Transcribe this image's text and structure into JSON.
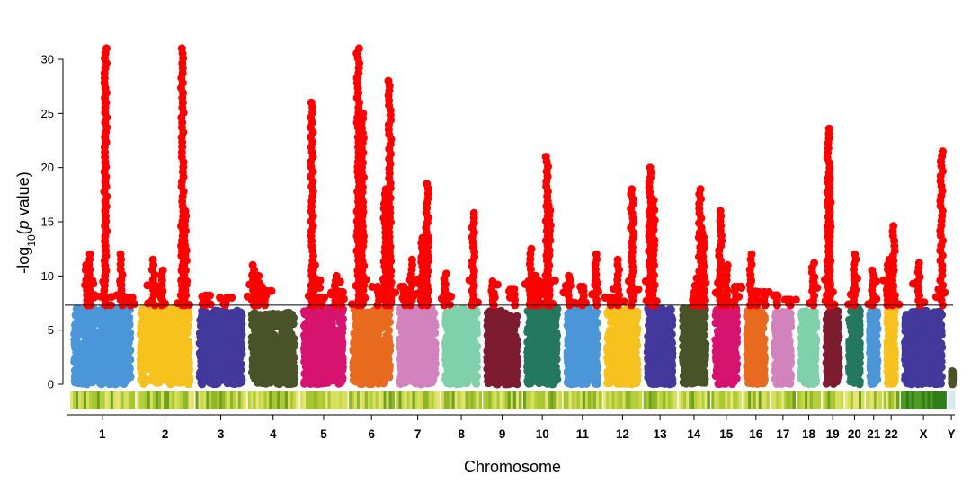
{
  "chart_data": {
    "type": "scatter",
    "subtype": "manhattan",
    "xlabel": "Chromosome",
    "ylabel": {
      "prefix": "-log",
      "sub": "10",
      "open": "(",
      "italic": "p",
      "rest": " value)"
    },
    "ylim": [
      0,
      31
    ],
    "yticks": [
      0,
      5,
      10,
      15,
      20,
      25,
      30
    ],
    "significance_line": 7.3,
    "significant_color": "#ff0000",
    "chromosomes": [
      {
        "label": "1",
        "color": "#4a96d8",
        "bg_max": 7.0,
        "peaks": [
          [
            0.25,
            11
          ],
          [
            0.3,
            12
          ],
          [
            0.55,
            31
          ],
          [
            0.8,
            12
          ],
          [
            0.95,
            8
          ]
        ]
      },
      {
        "label": "2",
        "color": "#f7c11e",
        "bg_max": 7.0,
        "peaks": [
          [
            0.3,
            11.5
          ],
          [
            0.45,
            10.5
          ],
          [
            0.8,
            31
          ],
          [
            0.85,
            16
          ]
        ]
      },
      {
        "label": "3",
        "color": "#43389c",
        "bg_max": 6.8,
        "peaks": [
          [
            0.2,
            8.2
          ],
          [
            0.6,
            8
          ]
        ]
      },
      {
        "label": "4",
        "color": "#4a5228",
        "bg_max": 6.6,
        "peaks": [
          [
            0.1,
            11
          ],
          [
            0.2,
            10
          ],
          [
            0.35,
            8.6
          ]
        ]
      },
      {
        "label": "5",
        "color": "#d6136e",
        "bg_max": 7.0,
        "peaks": [
          [
            0.25,
            26
          ],
          [
            0.3,
            11
          ],
          [
            0.45,
            8
          ],
          [
            0.75,
            10
          ],
          [
            0.85,
            8.5
          ]
        ]
      },
      {
        "label": "6",
        "color": "#e86a1e",
        "bg_max": 7.0,
        "peaks": [
          [
            0.2,
            31
          ],
          [
            0.3,
            25
          ],
          [
            0.65,
            9
          ],
          [
            0.8,
            18
          ],
          [
            0.9,
            28
          ]
        ]
      },
      {
        "label": "7",
        "color": "#d283be",
        "bg_max": 7.0,
        "peaks": [
          [
            0.2,
            9
          ],
          [
            0.35,
            11.5
          ],
          [
            0.6,
            13.5
          ],
          [
            0.72,
            18.5
          ]
        ]
      },
      {
        "label": "8",
        "color": "#7ed1aa",
        "bg_max": 7.0,
        "peaks": [
          [
            0.1,
            10.2
          ],
          [
            0.8,
            15.8
          ]
        ]
      },
      {
        "label": "9",
        "color": "#7d1c30",
        "bg_max": 6.8,
        "peaks": [
          [
            0.25,
            9.5
          ],
          [
            0.8,
            8.8
          ]
        ]
      },
      {
        "label": "10",
        "color": "#257860",
        "bg_max": 7.0,
        "peaks": [
          [
            0.2,
            12.5
          ],
          [
            0.3,
            10
          ],
          [
            0.4,
            9.5
          ],
          [
            0.62,
            21
          ],
          [
            0.68,
            16.5
          ]
        ]
      },
      {
        "label": "11",
        "color": "#4a96d8",
        "bg_max": 7.0,
        "peaks": [
          [
            0.15,
            10
          ],
          [
            0.5,
            9
          ],
          [
            0.85,
            12
          ]
        ]
      },
      {
        "label": "12",
        "color": "#f7c11e",
        "bg_max": 7.0,
        "peaks": [
          [
            0.2,
            8
          ],
          [
            0.4,
            11.5
          ],
          [
            0.75,
            18
          ]
        ]
      },
      {
        "label": "13",
        "color": "#43389c",
        "bg_max": 7.0,
        "peaks": [
          [
            0.2,
            20
          ],
          [
            0.3,
            17
          ]
        ]
      },
      {
        "label": "14",
        "color": "#4a5228",
        "bg_max": 7.0,
        "peaks": [
          [
            0.5,
            8.5
          ],
          [
            0.7,
            18
          ],
          [
            0.8,
            14
          ]
        ]
      },
      {
        "label": "15",
        "color": "#d6136e",
        "bg_max": 7.0,
        "peaks": [
          [
            0.3,
            16
          ],
          [
            0.5,
            11
          ],
          [
            0.8,
            9
          ]
        ]
      },
      {
        "label": "16",
        "color": "#e86a1e",
        "bg_max": 6.8,
        "peaks": [
          [
            0.3,
            12
          ],
          [
            0.5,
            8.5
          ],
          [
            0.85,
            8.5
          ]
        ]
      },
      {
        "label": "17",
        "color": "#d283be",
        "bg_max": 6.8,
        "peaks": [
          [
            0.3,
            8.2
          ],
          [
            0.8,
            7.8
          ]
        ]
      },
      {
        "label": "18",
        "color": "#7ed1aa",
        "bg_max": 6.8,
        "peaks": [
          [
            0.7,
            11.2
          ]
        ]
      },
      {
        "label": "19",
        "color": "#7d1c30",
        "bg_max": 6.8,
        "peaks": [
          [
            0.3,
            23.6
          ],
          [
            0.35,
            19.5
          ]
        ]
      },
      {
        "label": "20",
        "color": "#257860",
        "bg_max": 7.0,
        "peaks": [
          [
            0.5,
            12
          ]
        ]
      },
      {
        "label": "21",
        "color": "#4a96d8",
        "bg_max": 6.8,
        "peaks": [
          [
            0.45,
            10.5
          ]
        ]
      },
      {
        "label": "22",
        "color": "#f7c11e",
        "bg_max": 6.8,
        "peaks": [
          [
            0.3,
            11.5
          ],
          [
            0.65,
            14.6
          ]
        ]
      },
      {
        "label": "X",
        "color": "#43389c",
        "bg_max": 6.8,
        "peaks": [
          [
            0.4,
            11.2
          ],
          [
            0.9,
            21.5
          ]
        ]
      },
      {
        "label": "Y",
        "color": "#4a5228",
        "bg_max": 1.2,
        "peaks": []
      }
    ]
  }
}
